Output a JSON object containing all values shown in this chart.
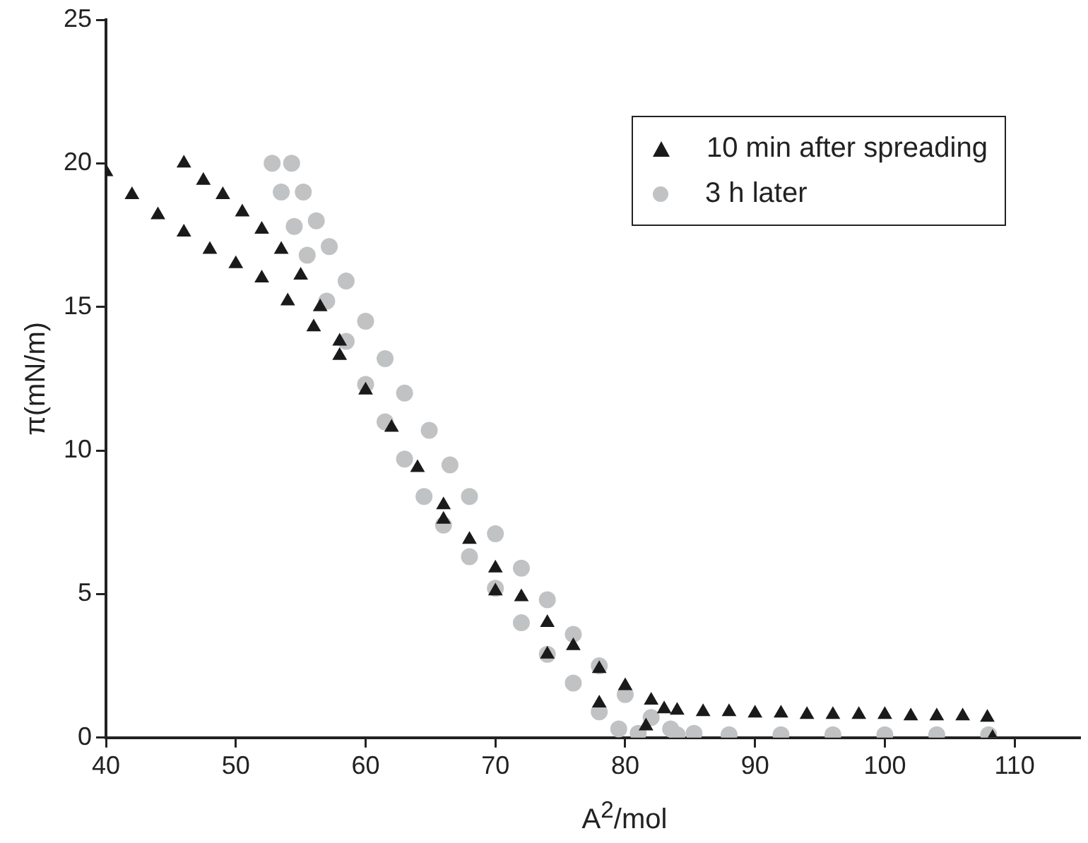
{
  "chart_data": {
    "type": "scatter",
    "xlabel": "A$^{2}$/mol",
    "ylabel": "π(mN/m)",
    "xlim": [
      40,
      115
    ],
    "xticks": [
      40,
      50,
      60,
      70,
      80,
      90,
      100,
      110
    ],
    "ylim": [
      0,
      25
    ],
    "yticks": [
      0,
      5,
      10,
      15,
      20,
      25
    ],
    "grid": false,
    "legend": "top right",
    "series": [
      {
        "name": "10 min after spreading",
        "color": "#1a1a1a",
        "marker": "triangle",
        "x": [
          40,
          42,
          44,
          46,
          48,
          50,
          52,
          54,
          56,
          58,
          60,
          62,
          64,
          66,
          68,
          70,
          72,
          74,
          76,
          78,
          80,
          82,
          83,
          84,
          86,
          88,
          90,
          92,
          94,
          96,
          98,
          100,
          102,
          104,
          106,
          107.9,
          108.3,
          46,
          47.5,
          49,
          50.5,
          52,
          53.5,
          55,
          56.5,
          58,
          66,
          70,
          74,
          78,
          81.6
        ],
        "values": [
          19.7,
          18.9,
          18.2,
          17.6,
          17.0,
          16.5,
          16.0,
          15.2,
          14.3,
          13.3,
          12.1,
          10.8,
          9.4,
          8.1,
          6.9,
          5.9,
          4.9,
          4.0,
          3.2,
          2.4,
          1.8,
          1.3,
          1.0,
          0.95,
          0.9,
          0.9,
          0.85,
          0.85,
          0.8,
          0.8,
          0.8,
          0.8,
          0.75,
          0.75,
          0.75,
          0.7,
          0,
          20.0,
          19.4,
          18.9,
          18.3,
          17.7,
          17.0,
          16.1,
          15.0,
          13.8,
          7.6,
          5.1,
          2.9,
          1.2,
          0.4
        ]
      },
      {
        "name": "3 h later",
        "color": "#c0c2c4",
        "marker": "circle",
        "x": [
          52.8,
          53.5,
          54.5,
          55.5,
          57,
          58.5,
          60,
          61.5,
          63,
          64.5,
          66,
          68,
          70,
          72,
          74,
          76,
          78,
          79.5,
          81,
          84,
          88,
          92,
          96,
          100,
          104,
          108,
          54.3,
          55.2,
          56.2,
          57.2,
          58.5,
          60,
          61.5,
          63,
          64.9,
          66.5,
          68,
          70,
          72,
          74,
          76,
          78,
          80,
          82,
          83.5,
          85.3
        ],
        "values": [
          20,
          19.0,
          17.8,
          16.8,
          15.2,
          13.8,
          12.3,
          11.0,
          9.7,
          8.4,
          7.4,
          6.3,
          5.2,
          4.0,
          2.9,
          1.9,
          0.9,
          0.3,
          0.15,
          0.1,
          0.1,
          0.1,
          0.1,
          0.1,
          0.1,
          0.1,
          20,
          19.0,
          18.0,
          17.1,
          15.9,
          14.5,
          13.2,
          12.0,
          10.7,
          9.5,
          8.4,
          7.1,
          5.9,
          4.8,
          3.6,
          2.5,
          1.5,
          0.7,
          0.3,
          0.15
        ]
      }
    ]
  }
}
